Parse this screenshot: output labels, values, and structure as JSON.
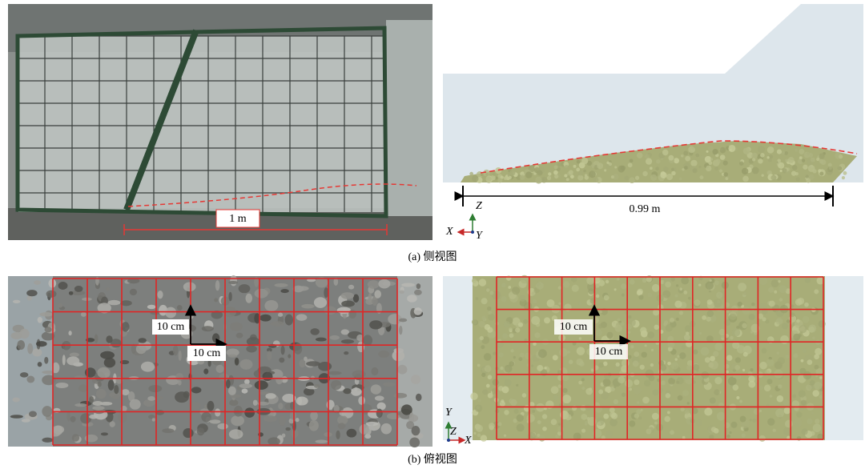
{
  "panel_a": {
    "photo": {
      "scale_label": "1 m"
    },
    "model": {
      "scale_label": "0.99 m",
      "axis_z": "Z",
      "axis_x": "X",
      "axis_y": "Y"
    },
    "caption": "(a) 侧视图"
  },
  "panel_b": {
    "photo": {
      "label_vertical": "10 cm",
      "label_horizontal": "10 cm"
    },
    "model": {
      "label_vertical": "10 cm",
      "label_horizontal": "10 cm",
      "axis_y": "Y",
      "axis_z": "Z",
      "axis_x": "X"
    },
    "caption": "(b) 俯视图"
  }
}
